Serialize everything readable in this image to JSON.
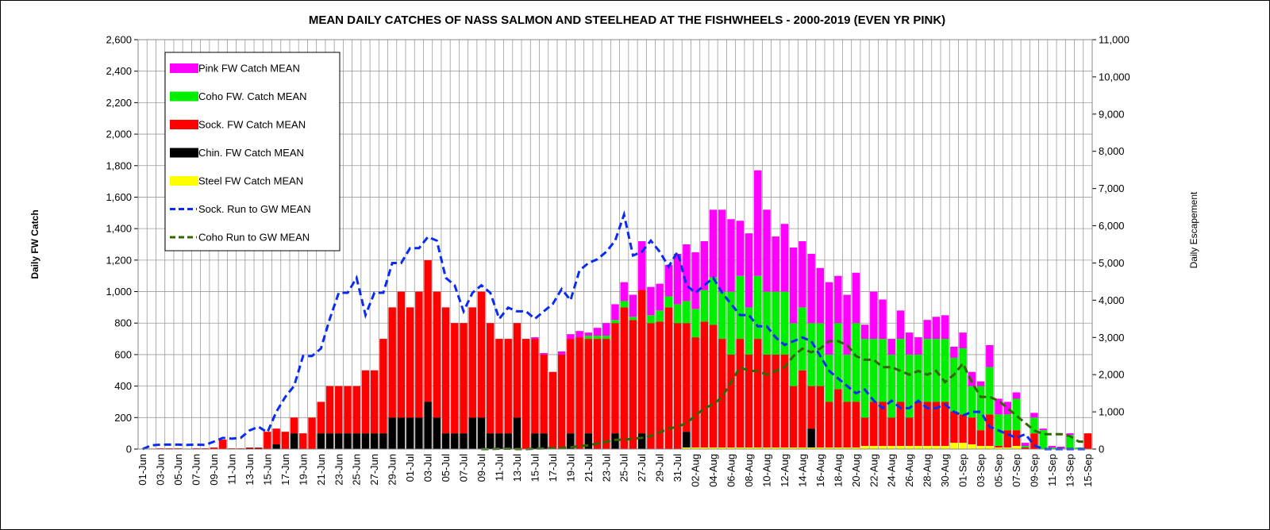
{
  "chart_data": {
    "type": "stacked-bar-line",
    "title": "MEAN DAILY CATCHES OF NASS SALMON AND STEELHEAD AT THE FISHWHEELS - 2000-2019 (EVEN YR PINK)",
    "ylabel": "Daily FW Catch",
    "y2label": "Daily Escapement",
    "categories": [
      "01-Jun",
      null,
      "03-Jun",
      null,
      "05-Jun",
      null,
      "07-Jun",
      null,
      "09-Jun",
      null,
      "11-Jun",
      null,
      "13-Jun",
      null,
      "15-Jun",
      null,
      "17-Jun",
      null,
      "19-Jun",
      null,
      "21-Jun",
      null,
      "23-Jun",
      null,
      "25-Jun",
      null,
      "27-Jun",
      null,
      "29-Jun",
      null,
      "01-Jul",
      null,
      "03-Jul",
      null,
      "05-Jul",
      null,
      "07-Jul",
      null,
      "09-Jul",
      null,
      "11-Jul",
      null,
      "13-Jul",
      null,
      "15-Jul",
      null,
      "17-Jul",
      null,
      "19-Jul",
      null,
      "21-Jul",
      null,
      "23-Jul",
      null,
      "25-Jul",
      null,
      "27-Jul",
      null,
      "29-Jul",
      null,
      "31-Jul",
      null,
      "02-Aug",
      null,
      "04-Aug",
      null,
      "06-Aug",
      null,
      "08-Aug",
      null,
      "10-Aug",
      null,
      "12-Aug",
      null,
      "14-Aug",
      null,
      "16-Aug",
      null,
      "18-Aug",
      null,
      "20-Aug",
      null,
      "22-Aug",
      null,
      "24-Aug",
      null,
      "26-Aug",
      null,
      "28-Aug",
      null,
      "30-Aug",
      null,
      "01-Sep",
      null,
      "03-Sep",
      null,
      "05-Sep",
      null,
      "07-Sep",
      null,
      "09-Sep",
      null,
      "11-Sep",
      null,
      "13-Sep",
      null,
      "15-Sep"
    ],
    "ylim": [
      0,
      2600
    ],
    "yticks": [
      0,
      200,
      400,
      600,
      800,
      {
        "value": 1000,
        "label": "1,000"
      },
      {
        "value": 1200,
        "label": "1,200"
      },
      {
        "value": 1400,
        "label": "1,400"
      },
      {
        "value": 1600,
        "label": "1,600"
      },
      {
        "value": 1800,
        "label": "1,800"
      },
      {
        "value": 2000,
        "label": "2,000"
      },
      {
        "value": 2200,
        "label": "2,200"
      },
      {
        "value": 2400,
        "label": "2,400"
      },
      {
        "value": 2600,
        "label": "2,600"
      }
    ],
    "y2lim": [
      0,
      11000
    ],
    "y2ticks": [
      0,
      {
        "value": 1000,
        "label": "1,000"
      },
      {
        "value": 2000,
        "label": "2,000"
      },
      {
        "value": 3000,
        "label": "3,000"
      },
      {
        "value": 4000,
        "label": "4,000"
      },
      {
        "value": 5000,
        "label": "5,000"
      },
      {
        "value": 6000,
        "label": "6,000"
      },
      {
        "value": 7000,
        "label": "7,000"
      },
      {
        "value": 8000,
        "label": "8,000"
      },
      {
        "value": 9000,
        "label": "9,000"
      },
      {
        "value": 10000,
        "label": "10,000"
      },
      {
        "value": 11000,
        "label": "11,000"
      }
    ],
    "grid": true,
    "legend": "upper left",
    "series": [
      {
        "name": "Pink FW Catch MEAN",
        "kind": "bar",
        "color": "#ff00ff",
        "values": [
          0,
          0,
          0,
          0,
          0,
          0,
          0,
          0,
          0,
          0,
          0,
          0,
          0,
          0,
          0,
          0,
          0,
          0,
          0,
          0,
          0,
          0,
          0,
          0,
          0,
          0,
          0,
          0,
          0,
          0,
          0,
          0,
          0,
          0,
          0,
          0,
          0,
          0,
          0,
          0,
          0,
          0,
          0,
          0,
          10,
          10,
          0,
          20,
          30,
          40,
          20,
          50,
          80,
          100,
          120,
          140,
          310,
          180,
          170,
          200,
          320,
          360,
          360,
          310,
          430,
          520,
          460,
          350,
          470,
          670,
          520,
          350,
          430,
          480,
          420,
          440,
          350,
          460,
          300,
          380,
          320,
          90,
          300,
          250,
          100,
          180,
          140,
          110,
          120,
          140,
          150,
          70,
          100,
          90,
          30,
          140,
          100,
          80,
          40,
          20,
          30,
          10,
          10,
          10,
          10,
          0,
          0
        ]
      },
      {
        "name": "Coho FW. Catch MEAN",
        "kind": "bar",
        "color": "#00ee00",
        "values": [
          0,
          0,
          0,
          0,
          0,
          0,
          0,
          0,
          0,
          0,
          0,
          0,
          0,
          0,
          0,
          0,
          0,
          0,
          0,
          0,
          0,
          0,
          0,
          0,
          0,
          0,
          0,
          0,
          0,
          0,
          0,
          0,
          0,
          0,
          0,
          0,
          0,
          0,
          0,
          0,
          0,
          0,
          0,
          0,
          0,
          0,
          0,
          0,
          0,
          0,
          20,
          20,
          20,
          20,
          40,
          20,
          0,
          50,
          70,
          70,
          120,
          140,
          180,
          200,
          300,
          300,
          400,
          400,
          300,
          400,
          400,
          400,
          400,
          400,
          400,
          400,
          400,
          300,
          420,
          300,
          500,
          500,
          400,
          400,
          400,
          400,
          400,
          300,
          400,
          400,
          400,
          340,
          420,
          200,
          280,
          300,
          200,
          100,
          200,
          10,
          100,
          120,
          10,
          5,
          90,
          10,
          0
        ]
      },
      {
        "name": "Sock. FW Catch MEAN",
        "kind": "bar",
        "color": "#ff0000",
        "values": [
          2,
          3,
          5,
          5,
          5,
          3,
          5,
          5,
          10,
          60,
          5,
          5,
          5,
          5,
          110,
          100,
          110,
          100,
          100,
          200,
          200,
          300,
          300,
          300,
          300,
          400,
          400,
          600,
          700,
          800,
          700,
          800,
          900,
          800,
          800,
          700,
          700,
          700,
          800,
          700,
          600,
          600,
          600,
          700,
          600,
          500,
          490,
          600,
          600,
          710,
          600,
          700,
          700,
          700,
          900,
          820,
          910,
          800,
          810,
          900,
          800,
          690,
          700,
          800,
          780,
          690,
          590,
          690,
          590,
          690,
          590,
          590,
          590,
          390,
          490,
          270,
          390,
          290,
          370,
          290,
          290,
          180,
          280,
          280,
          180,
          280,
          180,
          280,
          280,
          280,
          280,
          200,
          180,
          170,
          100,
          200,
          10,
          110,
          100,
          10,
          100,
          0,
          0,
          0,
          0,
          0,
          100
        ]
      },
      {
        "name": "Chin. FW Catch MEAN",
        "kind": "bar",
        "color": "#000000",
        "values": [
          0,
          0,
          0,
          0,
          0,
          0,
          0,
          0,
          0,
          0,
          0,
          0,
          5,
          5,
          0,
          30,
          0,
          100,
          0,
          0,
          100,
          100,
          100,
          100,
          100,
          100,
          100,
          100,
          200,
          200,
          200,
          200,
          300,
          200,
          100,
          100,
          100,
          200,
          200,
          100,
          100,
          100,
          200,
          0,
          100,
          100,
          0,
          0,
          100,
          0,
          100,
          0,
          0,
          100,
          0,
          0,
          100,
          0,
          0,
          0,
          0,
          100,
          0,
          0,
          0,
          0,
          0,
          0,
          0,
          0,
          0,
          0,
          0,
          0,
          0,
          120,
          0,
          0,
          0,
          0,
          0,
          0,
          0,
          0,
          0,
          0,
          0,
          0,
          0,
          0,
          0,
          0,
          0,
          0,
          0,
          0,
          0,
          0,
          0,
          0,
          0,
          0,
          0,
          0,
          0,
          0,
          0
        ]
      },
      {
        "name": "Steel FW Catch MEAN",
        "kind": "bar",
        "color": "#ffff00",
        "values": [
          0,
          0,
          0,
          0,
          0,
          0,
          0,
          0,
          0,
          0,
          0,
          0,
          0,
          0,
          0,
          0,
          0,
          0,
          0,
          0,
          0,
          0,
          0,
          0,
          0,
          0,
          0,
          0,
          0,
          0,
          0,
          0,
          0,
          0,
          0,
          0,
          0,
          0,
          0,
          0,
          0,
          0,
          0,
          0,
          0,
          0,
          0,
          0,
          0,
          0,
          0,
          0,
          0,
          0,
          0,
          0,
          0,
          0,
          0,
          0,
          0,
          10,
          10,
          10,
          10,
          10,
          10,
          10,
          10,
          10,
          10,
          10,
          10,
          10,
          10,
          10,
          10,
          10,
          10,
          10,
          10,
          20,
          20,
          20,
          20,
          20,
          20,
          20,
          20,
          20,
          20,
          40,
          40,
          30,
          20,
          20,
          10,
          10,
          20,
          0,
          0,
          0,
          0,
          0,
          0,
          0,
          0
        ]
      },
      {
        "name": "Sock. Run to GW MEAN",
        "kind": "line",
        "axis": "y2",
        "color": "#0a2cf0",
        "values": [
          0,
          100,
          120,
          120,
          120,
          110,
          120,
          110,
          200,
          300,
          280,
          300,
          500,
          600,
          450,
          1000,
          1400,
          1700,
          2500,
          2500,
          2700,
          3500,
          4200,
          4200,
          4600,
          3600,
          4200,
          4200,
          5000,
          5000,
          5400,
          5400,
          5700,
          5600,
          4600,
          4400,
          3700,
          4200,
          4400,
          4200,
          3500,
          3800,
          3700,
          3700,
          3500,
          3700,
          3900,
          4300,
          4000,
          4800,
          5000,
          5100,
          5300,
          5600,
          6300,
          5200,
          5300,
          5600,
          5300,
          4900,
          5300,
          4400,
          4200,
          4400,
          4600,
          4200,
          3900,
          3600,
          3600,
          3300,
          3300,
          3000,
          2800,
          2900,
          3000,
          2900,
          2500,
          2100,
          1900,
          1700,
          1500,
          1600,
          1300,
          1100,
          1300,
          1100,
          1100,
          1300,
          1100,
          1100,
          1200,
          1000,
          900,
          1000,
          1000,
          600,
          500,
          400,
          300,
          400,
          100,
          0,
          0,
          0,
          0,
          0,
          0
        ]
      },
      {
        "name": "Coho Run to GW MEAN",
        "kind": "line",
        "axis": "y2",
        "color": "#336600",
        "values": [
          null,
          null,
          null,
          null,
          null,
          null,
          null,
          null,
          null,
          null,
          null,
          null,
          null,
          null,
          null,
          null,
          null,
          null,
          null,
          null,
          null,
          null,
          null,
          null,
          null,
          null,
          null,
          null,
          null,
          null,
          null,
          null,
          null,
          null,
          null,
          null,
          null,
          null,
          0,
          0,
          10,
          10,
          0,
          0,
          10,
          20,
          30,
          30,
          50,
          80,
          100,
          150,
          200,
          250,
          250,
          280,
          300,
          350,
          450,
          550,
          600,
          700,
          900,
          1100,
          1200,
          1400,
          1800,
          2200,
          2100,
          2100,
          2000,
          2100,
          2200,
          2500,
          2700,
          2600,
          2700,
          2900,
          2900,
          2800,
          2500,
          2400,
          2400,
          2200,
          2200,
          2100,
          2000,
          2100,
          2000,
          2100,
          1800,
          2000,
          2300,
          1800,
          1400,
          1400,
          1300,
          1100,
          900,
          700,
          500,
          400,
          400,
          400,
          350,
          200,
          200
        ]
      }
    ]
  }
}
